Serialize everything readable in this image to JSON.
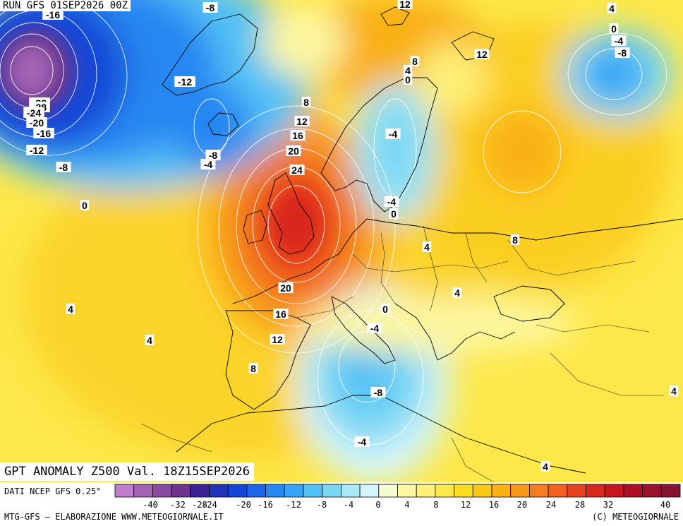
{
  "header": {
    "run": "RUN GFS 01SEP2026 00Z"
  },
  "title": {
    "text": "GPT ANOMALY Z500 Val. 18Z15SEP2026"
  },
  "footer": {
    "source": "DATI NCEP GFS 0.25°",
    "credit": "MTG-GFS — ELABORAZIONE WWW.METEOGIORNALE.IT",
    "copyright": "(C) METEOGIORNALE"
  },
  "colorscale": {
    "tick_values": [
      "-40",
      "-32",
      "-28",
      "-24",
      "-20",
      "-16",
      "-12",
      "-8",
      "-4",
      "0",
      "4",
      "8",
      "12",
      "16",
      "20",
      "24",
      "28",
      "32",
      "40"
    ],
    "colors": [
      "#c17fcb",
      "#a263b6",
      "#8b4aa0",
      "#6c348d",
      "#3c2294",
      "#1f34b8",
      "#1546d6",
      "#1b66ea",
      "#2587f2",
      "#35a4f5",
      "#52c1f5",
      "#79d7f4",
      "#a7e9f4",
      "#d4f6fb",
      "#f5fbd2",
      "#fdf7a2",
      "#fef078",
      "#fde84a",
      "#fbdd1f",
      "#fbc817",
      "#f9b116",
      "#f6981a",
      "#f47d1d",
      "#f0601f",
      "#e8411f",
      "#d9281f",
      "#c5171f",
      "#af0f25",
      "#99102b",
      "#861332"
    ]
  },
  "map": {
    "contour_labels": [
      {
        "text": "-16"
      },
      {
        "text": "-8"
      },
      {
        "text": "12"
      },
      {
        "text": "4"
      },
      {
        "text": "-12"
      },
      {
        "text": "0"
      },
      {
        "text": "-4"
      },
      {
        "text": "-8"
      },
      {
        "text": "8"
      },
      {
        "text": "12"
      },
      {
        "text": "4"
      },
      {
        "text": "0"
      },
      {
        "text": "-32"
      },
      {
        "text": "-28"
      },
      {
        "text": "-24"
      },
      {
        "text": "-20"
      },
      {
        "text": "-16"
      },
      {
        "text": "-12"
      },
      {
        "text": "-8"
      },
      {
        "text": "8"
      },
      {
        "text": "12"
      },
      {
        "text": "16"
      },
      {
        "text": "20"
      },
      {
        "text": "24"
      },
      {
        "text": "-8"
      },
      {
        "text": "-4"
      },
      {
        "text": "-4"
      },
      {
        "text": "0"
      },
      {
        "text": "-4"
      },
      {
        "text": "0"
      },
      {
        "text": "4"
      },
      {
        "text": "8"
      },
      {
        "text": "20"
      },
      {
        "text": "4"
      },
      {
        "text": "16"
      },
      {
        "text": "0"
      },
      {
        "text": "-4"
      },
      {
        "text": "4"
      },
      {
        "text": "4"
      },
      {
        "text": "12"
      },
      {
        "text": "8"
      },
      {
        "text": "-8"
      },
      {
        "text": "-4"
      },
      {
        "text": "4"
      },
      {
        "text": "4"
      }
    ]
  }
}
